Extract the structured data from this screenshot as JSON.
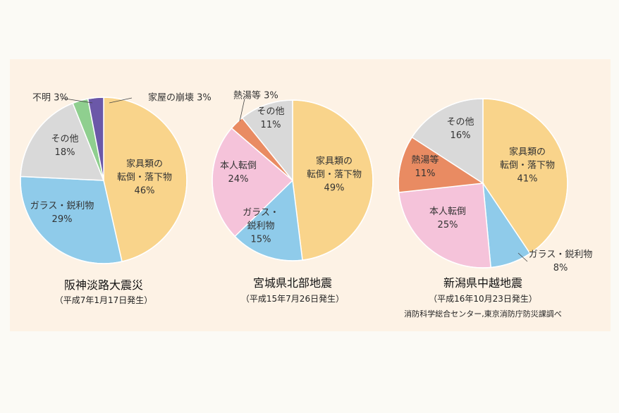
{
  "chart_data": [
    {
      "type": "pie",
      "title": "阪神淡路大震災",
      "subtitle": "（平成7年1月17日発生）",
      "slices": [
        {
          "label": [
            "家具類の",
            "転倒・落下物",
            "46%"
          ],
          "value": 46,
          "color": "#f9d48b"
        },
        {
          "label": [
            "ガラス・鋭利物",
            "29%"
          ],
          "value": 29,
          "color": "#8fcbea"
        },
        {
          "label": [
            "その他",
            "18%"
          ],
          "value": 18,
          "color": "#d9d9d9"
        },
        {
          "label": [
            "不明 3%"
          ],
          "value": 3,
          "color": "#8fcf8f"
        },
        {
          "label": [
            "家屋の崩壊 3%"
          ],
          "value": 3,
          "color": "#6b58a8"
        }
      ]
    },
    {
      "type": "pie",
      "title": "宮城県北部地震",
      "subtitle": "（平成15年7月26日発生）",
      "slices": [
        {
          "label": [
            "家具類の",
            "転倒・落下物",
            "49%"
          ],
          "value": 49,
          "color": "#f9d48b"
        },
        {
          "label": [
            "ガラス・",
            "鋭利物",
            "15%"
          ],
          "value": 15,
          "color": "#8fcbea"
        },
        {
          "label": [
            "本人転倒",
            "24%"
          ],
          "value": 24,
          "color": "#f5c3da"
        },
        {
          "label": [
            "熱湯等 3%"
          ],
          "value": 3,
          "color": "#e98b62"
        },
        {
          "label": [
            "その他",
            "11%"
          ],
          "value": 11,
          "color": "#d9d9d9"
        }
      ]
    },
    {
      "type": "pie",
      "title": "新潟県中越地震",
      "subtitle": "（平成16年10月23日発生）",
      "slices": [
        {
          "label": [
            "家具類の",
            "転倒・落下物",
            "41%"
          ],
          "value": 41,
          "color": "#f9d48b"
        },
        {
          "label": [
            "ガラス・鋭利物",
            "8%"
          ],
          "value": 8,
          "color": "#8fcbea"
        },
        {
          "label": [
            "本人転倒",
            "25%"
          ],
          "value": 25,
          "color": "#f5c3da"
        },
        {
          "label": [
            "熱湯等",
            "11%"
          ],
          "value": 11,
          "color": "#e98b62"
        },
        {
          "label": [
            "その他",
            "16%"
          ],
          "value": 16,
          "color": "#d9d9d9"
        }
      ]
    }
  ],
  "source": "消防科学総合センター,東京消防庁防災課調べ"
}
